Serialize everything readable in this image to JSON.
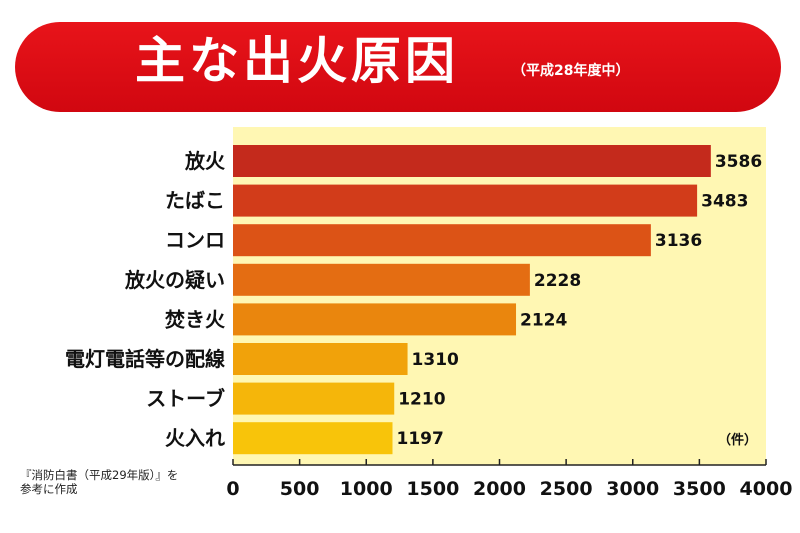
{
  "chart_data": {
    "type": "bar",
    "orientation": "horizontal",
    "title": "主な出火原因",
    "subtitle": "（平成28年度中）",
    "unit_label": "（件）",
    "source": [
      "『消防白書（平成29年版）』を",
      "参考に作成"
    ],
    "categories": [
      "放火",
      "たばこ",
      "コンロ",
      "放火の疑い",
      "焚き火",
      "電灯電話等の配線",
      "ストーブ",
      "火入れ"
    ],
    "values": [
      3586,
      3483,
      3136,
      2228,
      2124,
      1310,
      1210,
      1197
    ],
    "xlim": [
      0,
      4000
    ],
    "ticks": [
      "0",
      "500",
      "1000",
      "1500",
      "2000",
      "2500",
      "3000",
      "3500",
      "4000"
    ],
    "tick_values": [
      0,
      500,
      1000,
      1500,
      2000,
      2500,
      3000,
      3500,
      4000
    ],
    "grid": false,
    "colors": {
      "plot_bg": "#fff7b3",
      "banner": "#dd0b12",
      "bars": [
        "#c42a1c",
        "#d23c1a",
        "#dc5316",
        "#e46d12",
        "#ea860d",
        "#f1a20a",
        "#f5b60a",
        "#f8c40a"
      ]
    }
  }
}
